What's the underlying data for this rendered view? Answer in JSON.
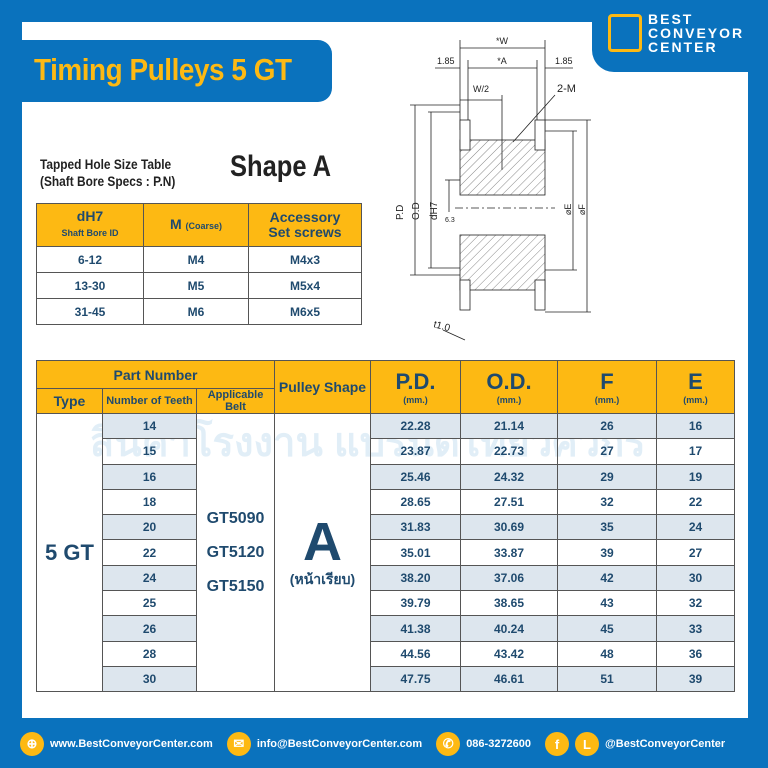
{
  "title": "Timing Pulleys 5 GT",
  "logo": {
    "line1": "BEST",
    "line2": "CONVEYOR",
    "line3": "CENTER"
  },
  "watermark": "สินค้าโรงงาน แบรนด์ไทยวิศวกร",
  "subtitle": {
    "line1": "Tapped Hole Size Table",
    "line2": "(Shaft Bore Specs : P.N)"
  },
  "shape_heading": "Shape A",
  "drawing": {
    "w": "*W",
    "a": "*A",
    "left": "1.85",
    "right": "1.85",
    "w2": "W/2",
    "m": "2-M",
    "pd": "P.D",
    "od": "O.D",
    "dh7": "dH7",
    "rough": "6.3",
    "e": "⌀E",
    "f": "⌀F",
    "t": "t1.0"
  },
  "tapped_table": {
    "headers": [
      {
        "label": "dH7",
        "sub": "Shaft Bore ID"
      },
      {
        "label": "M",
        "sub": "(Coarse)"
      },
      {
        "label": "Accessory",
        "sub": "Set screws"
      }
    ],
    "rows": [
      [
        "6-12",
        "M4",
        "M4x3"
      ],
      [
        "13-30",
        "M5",
        "M5x4"
      ],
      [
        "31-45",
        "M6",
        "M6x5"
      ]
    ]
  },
  "spec_table": {
    "group_header": "Part Number",
    "headers": {
      "type": "Type",
      "teeth": "Number of Teeth",
      "belt": "Applicable Belt",
      "shape": "Pulley Shape",
      "pd": "P.D.",
      "od": "O.D.",
      "f": "F",
      "e": "E",
      "unit": "(mm.)"
    },
    "type": "5 GT",
    "belts": [
      "GT5090",
      "GT5120",
      "GT5150"
    ],
    "shape": "A",
    "shape_note": "(หน้าเรียบ)",
    "rows": [
      [
        "14",
        "22.28",
        "21.14",
        "26",
        "16"
      ],
      [
        "15",
        "23.87",
        "22.73",
        "27",
        "17"
      ],
      [
        "16",
        "25.46",
        "24.32",
        "29",
        "19"
      ],
      [
        "18",
        "28.65",
        "27.51",
        "32",
        "22"
      ],
      [
        "20",
        "31.83",
        "30.69",
        "35",
        "24"
      ],
      [
        "22",
        "35.01",
        "33.87",
        "39",
        "27"
      ],
      [
        "24",
        "38.20",
        "37.06",
        "42",
        "30"
      ],
      [
        "25",
        "39.79",
        "38.65",
        "43",
        "32"
      ],
      [
        "26",
        "41.38",
        "40.24",
        "45",
        "33"
      ],
      [
        "28",
        "44.56",
        "43.42",
        "48",
        "36"
      ],
      [
        "30",
        "47.75",
        "46.61",
        "51",
        "39"
      ]
    ]
  },
  "footer": {
    "web": "www.BestConveyorCenter.com",
    "email": "info@BestConveyorCenter.com",
    "phone": "086-3272600",
    "social": "@BestConveyorCenter",
    "fb": "f",
    "line": "L"
  },
  "colors": {
    "brand_blue": "#0a72bd",
    "accent_yellow": "#fdb913",
    "text_navy": "#1f4a6e",
    "row_shade": "#dde6ee"
  }
}
